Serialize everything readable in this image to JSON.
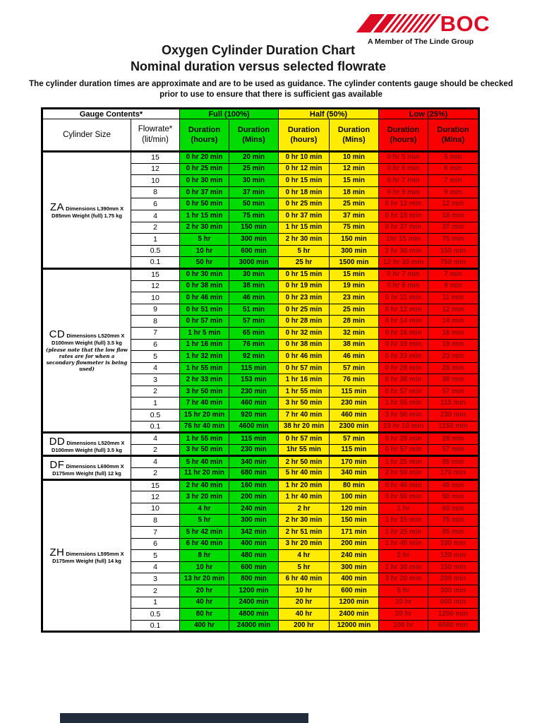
{
  "page": {
    "logo": {
      "brand": "BOC",
      "tagline": "A Member of The Linde Group"
    },
    "title": "Oxygen Cylinder Duration Chart",
    "subtitle": "Nominal duration versus selected flowrate",
    "disclaimer": "The cylinder duration times are approximate and are to be used as guidance.  The cylinder contents gauge should be checked prior to use to ensure that there is sufficient gas available"
  },
  "colors": {
    "green": "#00DC00",
    "yellow": "#FFEC00",
    "red": "#FB0000",
    "red_text": "#8F0000",
    "logo_red": "#DC0A23",
    "footer_navy": "#232C3D"
  },
  "table": {
    "header_row1": {
      "gauge": "Gauge Contents*",
      "full": "Full (100%)",
      "half": "Half (50%)",
      "low": "Low (25%)"
    },
    "header_row2": {
      "cylinder_size": "Cylinder Size",
      "flowrate": "Flowrate*\n(lit/min)",
      "duration_hours": "Duration\n(hours)",
      "duration_mins": "Duration\n(Mins)"
    },
    "sections": [
      {
        "code": "ZA",
        "dim": "Dimensions L390mm X",
        "weight": "D85mm Weight (full) 1.75 kg",
        "note": "",
        "rows": [
          [
            "15",
            "0 hr 20 min",
            "20 min",
            "0 hr 10 min",
            "10 min",
            "0 hr 5 min",
            "5 min"
          ],
          [
            "12",
            "0 hr 25 min",
            "25 min",
            "0 hr 12 min",
            "12 min",
            "0 hr 6 min",
            "6 min"
          ],
          [
            "10",
            "0 hr 30 min",
            "30 min",
            "0 hr 15 min",
            "15 min",
            "0 hr 7 min",
            "7 min"
          ],
          [
            "8",
            "0 hr 37 min",
            "37 min",
            "0 hr 18 min",
            "18 min",
            "0 hr 9 min",
            "9 min"
          ],
          [
            "6",
            "0 hr 50 min",
            "50 min",
            "0 hr 25 min",
            "25 min",
            "0 hr 12 min",
            "12 min"
          ],
          [
            "4",
            "1 hr 15 min",
            "75 min",
            "0 hr 37 min",
            "37 min",
            "0 hr 18 min",
            "18 min"
          ],
          [
            "2",
            "2 hr 30 min",
            "150 min",
            "1 hr 15 min",
            "75 min",
            "0 hr 37 min",
            "37 min"
          ],
          [
            "1",
            "5 hr",
            "300 min",
            "2 hr 30 min",
            "150 min",
            "1hr 15 min",
            "75 min"
          ],
          [
            "0.5",
            "10 hr",
            "600 min",
            "5 hr",
            "300 min",
            "2 hr 30 min",
            "150 min"
          ],
          [
            "0.1",
            "50 hr",
            "3000 min",
            "25 hr",
            "1500 min",
            "12 hr 30 min",
            "750 min"
          ]
        ]
      },
      {
        "code": "CD",
        "dim": "Dimensions L520mm X",
        "weight": "D100mm Weight (full) 3.5 kg",
        "note": "(please note that the low flow rates are for when a secondary flowmeter is being used)",
        "rows": [
          [
            "15",
            "0 hr 30 min",
            "30 min",
            "0 hr 15 min",
            "15 min",
            "0 hr 7 min",
            "7 min"
          ],
          [
            "12",
            "0 hr 38 min",
            "38 min",
            "0 hr 19 min",
            "19 min",
            "0 hr 9 min",
            "9 min"
          ],
          [
            "10",
            "0 hr 46 min",
            "46 min",
            "0 hr 23 min",
            "23 min",
            "0 hr 11 min",
            "11 min"
          ],
          [
            "9",
            "0 hr 51 min",
            "51 min",
            "0 hr 25 min",
            "25 min",
            "0 hr 12 min",
            "12 min"
          ],
          [
            "8",
            "0 hr 57 min",
            "57 min",
            "0 hr 28 min",
            "28 min",
            "0 hr 14 min",
            "14 min"
          ],
          [
            "7",
            "1 hr 5 min",
            "65 min",
            "0 hr 32 min",
            "32 min",
            "0 hr 16 min",
            "16 min"
          ],
          [
            "6",
            "1 hr 16 min",
            "76 min",
            "0 hr 38 min",
            "38 min",
            "0 hr 19 min",
            "19 min"
          ],
          [
            "5",
            "1 hr 32 min",
            "92 min",
            "0 hr 46 min",
            "46 min",
            "0 hr 23 min",
            "23 min"
          ],
          [
            "4",
            "1 hr 55 min",
            "115 min",
            "0 hr 57 min",
            "57 min",
            "0 hr 28 min",
            "28 min"
          ],
          [
            "3",
            "2 hr 33 min",
            "153 min",
            "1 hr 16 min",
            "76 min",
            "0 hr 38 min",
            "38 min"
          ],
          [
            "2",
            "3 hr 50 min",
            "230 min",
            "1 hr 55 min",
            "115 min",
            "0 hr 57 min",
            "57 min"
          ],
          [
            "1",
            "7 hr 40 min",
            "460 min",
            "3 hr 50 min",
            "230 min",
            "1 hr 55 min",
            "115 min"
          ],
          [
            "0.5",
            "15 hr 20 min",
            "920 min",
            "7 hr 40 min",
            "460 min",
            "3 hr 50 min",
            "230 min"
          ],
          [
            "0.1",
            "76 hr 40 min",
            "4600 min",
            "38 hr 20 min",
            "2300 min",
            "19 hr 10 min",
            "1150 min"
          ]
        ]
      },
      {
        "code": "DD",
        "dim": "Dimensions L520mm X",
        "weight": "D100mm Weight (full) 3.5 kg",
        "note": "",
        "rows": [
          [
            "4",
            "1 hr 55 min",
            "115 min",
            "0 hr 57 min",
            "57 min",
            "0 hr 28 min",
            "28 min"
          ],
          [
            "2",
            "3 hr 50 min",
            "230 min",
            "1hr 55 min",
            "115 min",
            "0 hr 57 min",
            "57 min"
          ]
        ]
      },
      {
        "code": "DF",
        "dim": "Dimensions L690mm X",
        "weight": "D175mm Weight (full) 12 kg",
        "note": "",
        "rows": [
          [
            "4",
            "5 hr 40 min",
            "340 min",
            "2 hr 50 min",
            "170 min",
            "1 hr 25 min",
            "85 min"
          ],
          [
            "2",
            "11 hr 20 min",
            "680 min",
            "5 hr 40 min",
            "340 min",
            "2 hr 50 min",
            "170 min"
          ]
        ]
      },
      {
        "code": "ZH",
        "dim": "Dimensions L595mm X",
        "weight": "D175mm Weight (full) 14 kg",
        "note": "",
        "rows": [
          [
            "15",
            "2 hr 40 min",
            "160 min",
            "1 hr 20 min",
            "80 min",
            "0 hr 40 min",
            "40 min"
          ],
          [
            "12",
            "3 hr 20 min",
            "200 min",
            "1 hr 40 min",
            "100 min",
            "0 hr 50 min",
            "50 min"
          ],
          [
            "10",
            "4 hr",
            "240 min",
            "2 hr",
            "120 min",
            "1 hr",
            "60 min"
          ],
          [
            "8",
            "5 hr",
            "300 min",
            "2 hr 30 min",
            "150 min",
            "1 hr 15 min",
            "75 min"
          ],
          [
            "7",
            "5 hr 42 min",
            "342 min",
            "2 hr 51 min",
            "171 min",
            "1 hr 25 min",
            "85 min"
          ],
          [
            "6",
            "6 hr 40 min",
            "400 min",
            "3 hr 20 min",
            "200 min",
            "1 hr 40 min",
            "100 min"
          ],
          [
            "5",
            "8 hr",
            "480 min",
            "4 hr",
            "240 min",
            "2 hr",
            "120 min"
          ],
          [
            "4",
            "10 hr",
            "600 min",
            "5 hr",
            "300 min",
            "2 hr 30 min",
            "150 min"
          ],
          [
            "3",
            "13 hr 20 min",
            "800 min",
            "6 hr 40 min",
            "400 min",
            "3 hr 20 min",
            "200 min"
          ],
          [
            "2",
            "20 hr",
            "1200 min",
            "10 hr",
            "600 min",
            "5 hr",
            "300 min"
          ],
          [
            "1",
            "40 hr",
            "2400 min",
            "20 hr",
            "1200 min",
            "10 hr",
            "600 min"
          ],
          [
            "0.5",
            "80 hr",
            "4800 min",
            "40 hr",
            "2400 min",
            "20 hr",
            "1200 min"
          ],
          [
            "0.1",
            "400 hr",
            "24000 min",
            "200 hr",
            "12000 min",
            "100 hr",
            "6000 min"
          ]
        ]
      }
    ]
  }
}
